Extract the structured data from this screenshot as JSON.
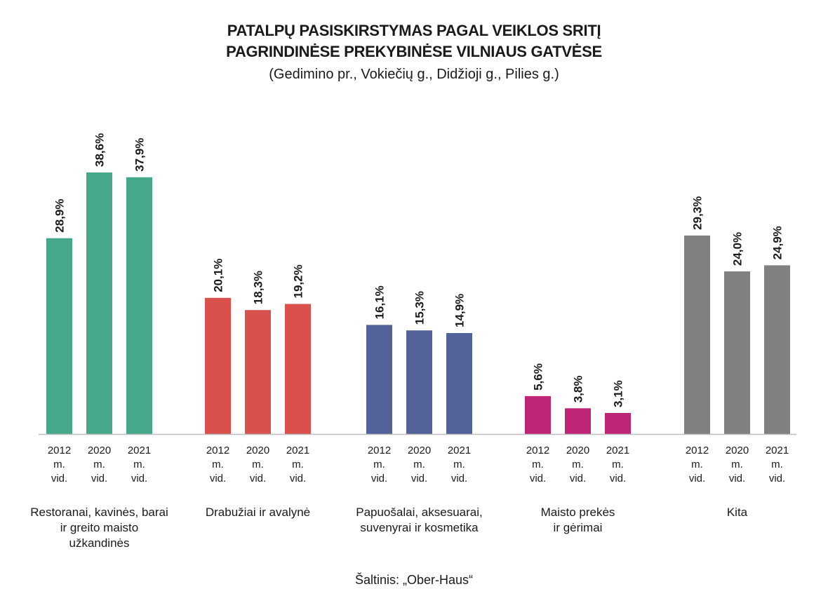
{
  "title_line1": "PATALPŲ PASISKIRSTYMAS PAGAL VEIKLOS SRITĮ",
  "title_line2": "PAGRINDINĖSE PREKYBINĖSE VILNIAUS GATVĖSE",
  "subtitle": "(Gedimino pr., Vokiečių g., Didžioji g., Pilies g.)",
  "source": "Šaltinis: „Ober-Haus“",
  "chart_data": {
    "type": "bar",
    "x_labels": [
      "2012 m. vid.",
      "2020 m. vid.",
      "2021 m. vid."
    ],
    "groups": [
      {
        "category": "Restoranai, kavinės, barai ir greito maisto užkandinės",
        "category_lines": [
          "Restoranai, kavinės, barai",
          "ir greito maisto",
          "užkandinės"
        ],
        "color": "#45a88a",
        "values": [
          28.9,
          38.6,
          37.9
        ],
        "value_labels": [
          "28,9%",
          "38,6%",
          "37,9%"
        ]
      },
      {
        "category": "Drabužiai ir avalynė",
        "category_lines": [
          "Drabužiai ir avalynė"
        ],
        "color": "#d9504d",
        "values": [
          20.1,
          18.3,
          19.2
        ],
        "value_labels": [
          "20,1%",
          "18,3%",
          "19,2%"
        ]
      },
      {
        "category": "Papuošalai, aksesuarai, suvenyrai ir kosmetika",
        "category_lines": [
          "Papuošalai, aksesuarai,",
          "suvenyrai ir kosmetika"
        ],
        "color": "#536299",
        "values": [
          16.1,
          15.3,
          14.9
        ],
        "value_labels": [
          "16,1%",
          "15,3%",
          "14,9%"
        ]
      },
      {
        "category": "Maisto prekės ir gėrimai",
        "category_lines": [
          "Maisto prekės",
          "ir gėrimai"
        ],
        "color": "#c02475",
        "values": [
          5.6,
          3.8,
          3.1
        ],
        "value_labels": [
          "5,6%",
          "3,8%",
          "3,1%"
        ]
      },
      {
        "category": "Kita",
        "category_lines": [
          "Kita"
        ],
        "color": "#808080",
        "values": [
          29.3,
          24.0,
          24.9
        ],
        "value_labels": [
          "29,3%",
          "24,0%",
          "24,9%"
        ]
      }
    ],
    "ylim": [
      0,
      40
    ],
    "grid": false,
    "legend": "none"
  }
}
